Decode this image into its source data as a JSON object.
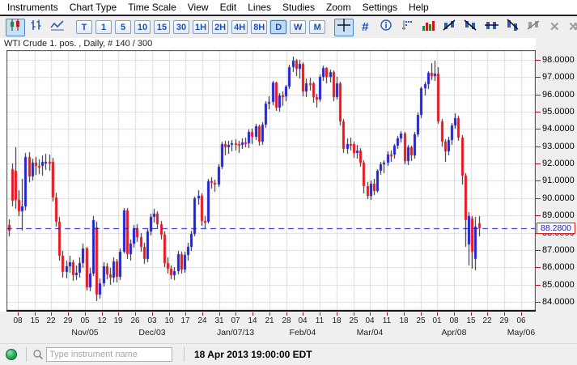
{
  "menu": {
    "items": [
      "Instruments",
      "Chart Type",
      "Time Scale",
      "View",
      "Edit",
      "Lines",
      "Studies",
      "Zoom",
      "Settings",
      "Help"
    ]
  },
  "toolbar": {
    "chart_type_buttons": [
      {
        "id": "candlestick-chart",
        "active": true
      },
      {
        "id": "ohlc-bar-chart",
        "active": false
      },
      {
        "id": "line-chart",
        "active": false
      }
    ],
    "timeframes": [
      "T",
      "1",
      "5",
      "10",
      "15",
      "30",
      "1H",
      "2H",
      "4H",
      "8H",
      "D",
      "W",
      "M"
    ],
    "active_timeframe": "D",
    "tools": [
      {
        "id": "crosshair",
        "active": true,
        "disabled": false
      },
      {
        "id": "grid-toggle",
        "active": false,
        "disabled": false
      },
      {
        "id": "info",
        "active": false,
        "disabled": false
      },
      {
        "id": "axis-marker",
        "active": false,
        "disabled": false
      },
      {
        "id": "volume",
        "active": false,
        "disabled": false
      },
      {
        "id": "draw-trend-up",
        "active": false,
        "disabled": false
      },
      {
        "id": "draw-trend-down",
        "active": false,
        "disabled": false
      },
      {
        "id": "draw-hline",
        "active": false,
        "disabled": false
      },
      {
        "id": "draw-channel",
        "active": false,
        "disabled": false
      },
      {
        "id": "edit-drawing",
        "active": false,
        "disabled": true
      },
      {
        "id": "delete-drawing",
        "active": false,
        "disabled": true
      },
      {
        "id": "delete-all-drawings",
        "active": false,
        "disabled": true
      },
      {
        "id": "print",
        "active": false,
        "disabled": false
      },
      {
        "id": "pin-chart",
        "active": false,
        "disabled": false
      }
    ],
    "overflow_label": "»"
  },
  "chart": {
    "title": "WTI Crude 1. pos. , Daily, # 140 / 300"
  },
  "chart_data": {
    "type": "candlestick",
    "instrument": "WTI Crude 1. pos.",
    "interval": "Daily",
    "bars_shown": 140,
    "bars_total": 300,
    "last_price": 88.28,
    "last_price_label": "88.2800",
    "ylim": [
      83.4,
      98.6
    ],
    "y_ticks": [
      98,
      97,
      96,
      95,
      94,
      93,
      92,
      91,
      90,
      89,
      88,
      87,
      86,
      85,
      84
    ],
    "grid": true,
    "colors": {
      "up": "#1f1fd6",
      "down": "#e8141e",
      "wick": "#15151a",
      "last_price_line": "#1414cc",
      "grid": "#dcdcdc"
    },
    "x_day_ticks": [
      "08",
      "15",
      "22",
      "29",
      "05",
      "12",
      "19",
      "26",
      "03",
      "10",
      "17",
      "24",
      "31",
      "07",
      "14",
      "21",
      "28",
      "04",
      "11",
      "18",
      "25",
      "04",
      "11",
      "18",
      "25",
      "01",
      "08",
      "15",
      "22",
      "29",
      "06"
    ],
    "x_month_labels": [
      {
        "label": "Nov/05",
        "tick": 4
      },
      {
        "label": "Dec/03",
        "tick": 8
      },
      {
        "label": "Jan/07/13",
        "tick": 13
      },
      {
        "label": "Feb/04",
        "tick": 17
      },
      {
        "label": "Mar/04",
        "tick": 21
      },
      {
        "label": "Apr/08",
        "tick": 26
      },
      {
        "label": "May/06",
        "tick": 30
      }
    ],
    "candles": [
      [
        88.45,
        88.75,
        87.8,
        88.1
      ],
      [
        91.7,
        92.0,
        89.5,
        89.85
      ],
      [
        91.6,
        92.95,
        89.4,
        89.9
      ],
      [
        89.9,
        90.45,
        88.95,
        89.25
      ],
      [
        89.25,
        91.1,
        88.1,
        89.5
      ],
      [
        89.5,
        92.6,
        89.3,
        92.39
      ],
      [
        92.39,
        92.65,
        90.95,
        91.25
      ],
      [
        91.25,
        92.3,
        91.0,
        92.07
      ],
      [
        92.07,
        92.4,
        91.35,
        91.86
      ],
      [
        91.86,
        92.25,
        91.4,
        91.85
      ],
      [
        91.85,
        92.45,
        91.3,
        92.09
      ],
      [
        92.09,
        92.55,
        91.65,
        92.12
      ],
      [
        92.12,
        92.5,
        91.6,
        92.1
      ],
      [
        92.1,
        92.35,
        89.8,
        90.05
      ],
      [
        90.05,
        90.3,
        88.35,
        88.65
      ],
      [
        88.65,
        88.9,
        86.4,
        86.67
      ],
      [
        86.67,
        86.95,
        85.4,
        85.73
      ],
      [
        85.73,
        86.4,
        85.35,
        86.05
      ],
      [
        86.05,
        86.65,
        85.7,
        86.28
      ],
      [
        86.28,
        86.45,
        85.2,
        85.54
      ],
      [
        85.54,
        86.1,
        85.25,
        85.68
      ],
      [
        85.68,
        86.55,
        85.4,
        86.24
      ],
      [
        86.24,
        87.35,
        85.95,
        87.09
      ],
      [
        87.09,
        87.2,
        84.65,
        84.86
      ],
      [
        84.86,
        85.95,
        84.6,
        85.65
      ],
      [
        85.65,
        88.95,
        85.5,
        88.71
      ],
      [
        88.3,
        88.65,
        84.05,
        84.44
      ],
      [
        84.44,
        85.35,
        84.2,
        85.09
      ],
      [
        85.09,
        86.3,
        84.9,
        86.07
      ],
      [
        86.07,
        86.25,
        85.3,
        85.57
      ],
      [
        85.57,
        85.95,
        85.0,
        85.38
      ],
      [
        85.38,
        86.55,
        85.1,
        86.32
      ],
      [
        86.32,
        86.5,
        85.1,
        85.45
      ],
      [
        85.45,
        87.1,
        85.25,
        86.92
      ],
      [
        86.92,
        89.45,
        86.8,
        89.28
      ],
      [
        89.28,
        89.45,
        86.5,
        86.75
      ],
      [
        86.75,
        87.6,
        86.4,
        87.38
      ],
      [
        87.38,
        88.45,
        87.15,
        88.28
      ],
      [
        88.28,
        88.5,
        87.45,
        87.74
      ],
      [
        87.74,
        88.0,
        86.9,
        87.18
      ],
      [
        87.18,
        87.4,
        86.2,
        86.49
      ],
      [
        86.49,
        88.25,
        86.3,
        88.07
      ],
      [
        88.07,
        89.1,
        87.85,
        88.91
      ],
      [
        88.91,
        89.4,
        88.6,
        89.09
      ],
      [
        89.09,
        89.25,
        88.25,
        88.5
      ],
      [
        88.5,
        88.7,
        87.6,
        87.88
      ],
      [
        87.88,
        88.05,
        86.0,
        86.26
      ],
      [
        86.26,
        86.55,
        85.65,
        85.93
      ],
      [
        85.93,
        86.1,
        85.3,
        85.56
      ],
      [
        85.56,
        86.0,
        85.25,
        85.79
      ],
      [
        85.79,
        86.95,
        85.6,
        86.77
      ],
      [
        86.77,
        86.9,
        85.65,
        85.89
      ],
      [
        85.89,
        86.9,
        85.7,
        86.73
      ],
      [
        86.73,
        87.4,
        86.4,
        87.2
      ],
      [
        87.2,
        88.1,
        86.95,
        87.93
      ],
      [
        87.93,
        90.1,
        87.8,
        89.98
      ],
      [
        89.98,
        90.45,
        89.6,
        90.13
      ],
      [
        90.13,
        90.25,
        88.4,
        88.66
      ],
      [
        88.66,
        88.95,
        88.2,
        88.61
      ],
      [
        88.61,
        91.1,
        88.55,
        90.98
      ],
      [
        90.98,
        91.2,
        90.55,
        90.87
      ],
      [
        90.87,
        91.05,
        90.35,
        90.8
      ],
      [
        90.8,
        91.95,
        90.65,
        91.82
      ],
      [
        91.82,
        93.25,
        91.7,
        93.12
      ],
      [
        93.12,
        93.3,
        92.45,
        92.92
      ],
      [
        92.92,
        93.3,
        92.55,
        93.09
      ],
      [
        93.09,
        93.35,
        92.7,
        93.19
      ],
      [
        93.19,
        93.4,
        92.75,
        93.15
      ],
      [
        93.15,
        93.3,
        92.6,
        93.1
      ],
      [
        93.1,
        93.45,
        92.85,
        93.22
      ],
      [
        93.22,
        93.5,
        92.95,
        93.18
      ],
      [
        93.18,
        93.95,
        92.9,
        93.82
      ],
      [
        93.82,
        94.0,
        93.15,
        93.56
      ],
      [
        93.56,
        94.3,
        93.35,
        94.14
      ],
      [
        94.14,
        94.25,
        93.05,
        93.28
      ],
      [
        93.28,
        94.4,
        93.1,
        94.24
      ],
      [
        94.24,
        95.6,
        94.05,
        95.49
      ],
      [
        95.49,
        95.9,
        95.15,
        95.56
      ],
      [
        95.56,
        96.8,
        95.4,
        96.68
      ],
      [
        96.68,
        96.75,
        95.05,
        95.23
      ],
      [
        95.23,
        96.1,
        95.0,
        95.95
      ],
      [
        95.95,
        96.15,
        95.35,
        95.88
      ],
      [
        95.88,
        96.55,
        95.6,
        96.44
      ],
      [
        96.44,
        97.7,
        96.3,
        97.57
      ],
      [
        97.57,
        98.2,
        97.3,
        97.94
      ],
      [
        97.94,
        98.05,
        97.05,
        97.49
      ],
      [
        97.49,
        98.0,
        96.9,
        97.77
      ],
      [
        97.77,
        97.85,
        95.9,
        96.17
      ],
      [
        96.17,
        96.9,
        95.85,
        96.64
      ],
      [
        96.64,
        96.95,
        96.2,
        96.62
      ],
      [
        96.62,
        96.75,
        95.5,
        95.83
      ],
      [
        95.83,
        96.05,
        95.25,
        95.72
      ],
      [
        95.72,
        97.15,
        95.55,
        97.03
      ],
      [
        97.03,
        97.65,
        96.8,
        97.51
      ],
      [
        97.51,
        97.6,
        96.65,
        97.01
      ],
      [
        97.01,
        97.45,
        96.7,
        97.31
      ],
      [
        97.31,
        97.4,
        95.6,
        95.86
      ],
      [
        95.86,
        97.0,
        95.7,
        96.66
      ],
      [
        96.66,
        96.75,
        94.2,
        94.46
      ],
      [
        94.46,
        94.6,
        92.6,
        92.84
      ],
      [
        92.84,
        93.45,
        92.55,
        93.13
      ],
      [
        93.13,
        93.5,
        92.75,
        93.11
      ],
      [
        93.11,
        93.25,
        92.35,
        92.63
      ],
      [
        92.63,
        93.1,
        92.3,
        92.76
      ],
      [
        92.76,
        92.9,
        91.8,
        92.05
      ],
      [
        92.05,
        92.2,
        90.25,
        90.68
      ],
      [
        90.68,
        90.95,
        89.95,
        90.12
      ],
      [
        90.12,
        91.0,
        89.9,
        90.82
      ],
      [
        90.82,
        91.1,
        90.2,
        90.43
      ],
      [
        90.43,
        91.7,
        90.3,
        91.56
      ],
      [
        91.56,
        92.1,
        91.35,
        91.95
      ],
      [
        91.95,
        92.2,
        91.45,
        92.06
      ],
      [
        92.06,
        92.7,
        91.85,
        92.54
      ],
      [
        92.54,
        92.75,
        92.1,
        92.52
      ],
      [
        92.52,
        93.15,
        92.3,
        93.03
      ],
      [
        93.03,
        93.6,
        92.85,
        93.45
      ],
      [
        93.45,
        93.9,
        93.2,
        93.74
      ],
      [
        93.74,
        93.85,
        91.95,
        92.16
      ],
      [
        92.16,
        93.1,
        91.9,
        92.96
      ],
      [
        92.96,
        93.05,
        92.15,
        92.45
      ],
      [
        92.45,
        93.85,
        92.3,
        93.71
      ],
      [
        93.71,
        94.95,
        93.55,
        94.81
      ],
      [
        94.81,
        96.45,
        94.65,
        96.34
      ],
      [
        96.34,
        96.75,
        95.95,
        96.58
      ],
      [
        96.58,
        97.35,
        96.3,
        97.23
      ],
      [
        97.23,
        97.8,
        96.85,
        97.07
      ],
      [
        97.07,
        97.95,
        96.8,
        97.19
      ],
      [
        97.19,
        97.6,
        94.3,
        94.45
      ],
      [
        94.45,
        94.6,
        93.0,
        93.26
      ],
      [
        93.26,
        93.4,
        92.1,
        92.7
      ],
      [
        92.7,
        93.55,
        92.45,
        93.36
      ],
      [
        93.36,
        94.35,
        93.1,
        94.21
      ],
      [
        94.21,
        94.9,
        94.0,
        94.64
      ],
      [
        94.64,
        94.75,
        93.3,
        93.51
      ],
      [
        93.51,
        93.65,
        90.8,
        91.29
      ],
      [
        91.29,
        91.45,
        87.2,
        88.71
      ],
      [
        87.3,
        89.2,
        86.1,
        88.95
      ],
      [
        88.8,
        88.95,
        85.9,
        86.9
      ],
      [
        86.5,
        88.9,
        85.8,
        88.33
      ],
      [
        88.55,
        88.95,
        87.8,
        88.28
      ]
    ]
  },
  "statusbar": {
    "connection_state": "connected",
    "search_placeholder": "Type instrument name",
    "search_value": "",
    "timestamp": "18 Apr 2013 19:00:00 EDT"
  }
}
